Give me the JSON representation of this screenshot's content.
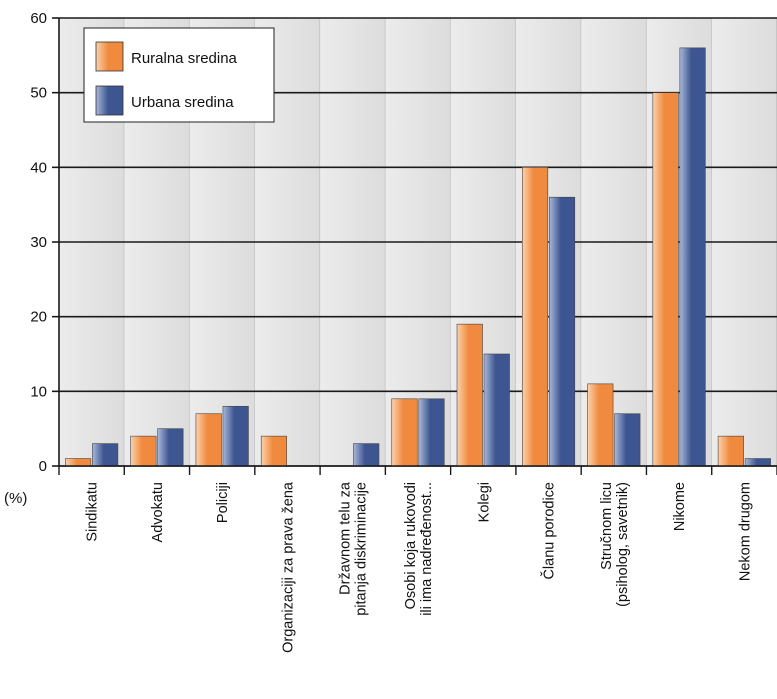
{
  "chart_data": {
    "type": "bar",
    "categories": [
      [
        "Sindikatu"
      ],
      [
        "Advokatu"
      ],
      [
        "Policiji"
      ],
      [
        "Organizaciji za prava žena"
      ],
      [
        "Državnom telu za",
        "pitanja diskriminacije"
      ],
      [
        "Osobi koja rukovodi",
        "ili ima nadređenost..."
      ],
      [
        "Kolegi"
      ],
      [
        "Članu porodice"
      ],
      [
        "Stručnom licu",
        "(psiholog, savetnik)"
      ],
      [
        "Nikome"
      ],
      [
        "Nekom drugom"
      ]
    ],
    "series": [
      {
        "name": "Ruralna sredina",
        "values": [
          1,
          4,
          7,
          4,
          0,
          9,
          19,
          40,
          11,
          50,
          4
        ]
      },
      {
        "name": "Urbana sredina",
        "values": [
          3,
          5,
          8,
          0,
          3,
          9,
          15,
          36,
          7,
          56,
          1
        ]
      }
    ],
    "yticks": [
      "0",
      "10",
      "20",
      "30",
      "40",
      "50",
      "60"
    ],
    "ylim": [
      0,
      60
    ],
    "yunit": "(%)",
    "legend_position": "top-left",
    "colors": {
      "rural_light": "#fbd2ad",
      "rural_dark": "#f08a3e",
      "urban_light": "#a9b8da",
      "urban_dark": "#3d5590",
      "band": "#dcdcdc",
      "band_edge": "#b0b0b0"
    }
  }
}
